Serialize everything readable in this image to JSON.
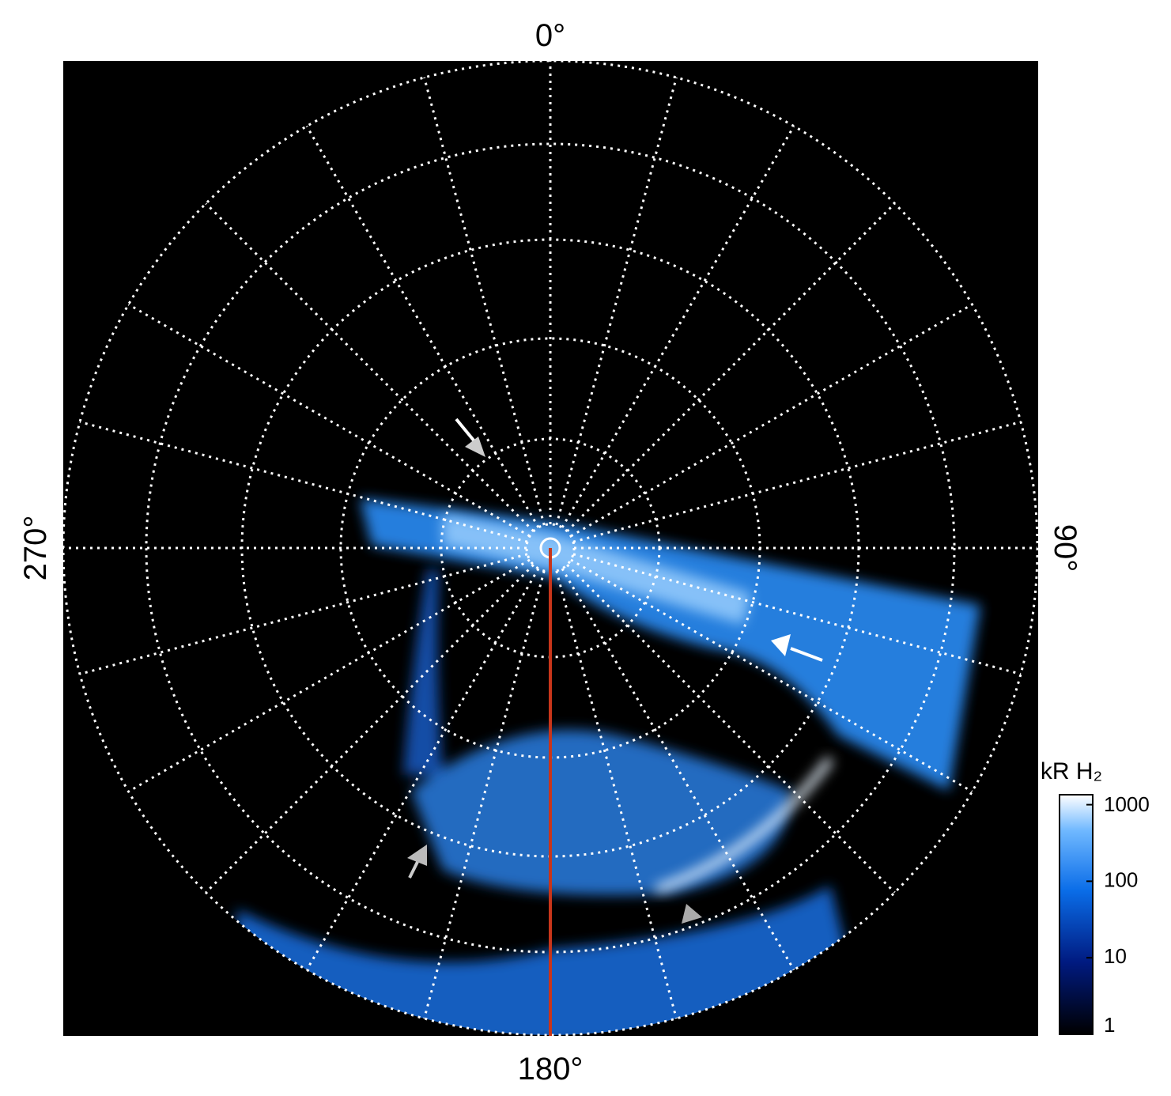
{
  "labels": {
    "top": "0°",
    "right": "90°",
    "bottom": "180°",
    "left": "270°"
  },
  "colorbar": {
    "label": "kR H₂",
    "lim": [
      1,
      1350
    ],
    "ticks": [
      1,
      10,
      100,
      1000
    ],
    "log": true
  }
}
